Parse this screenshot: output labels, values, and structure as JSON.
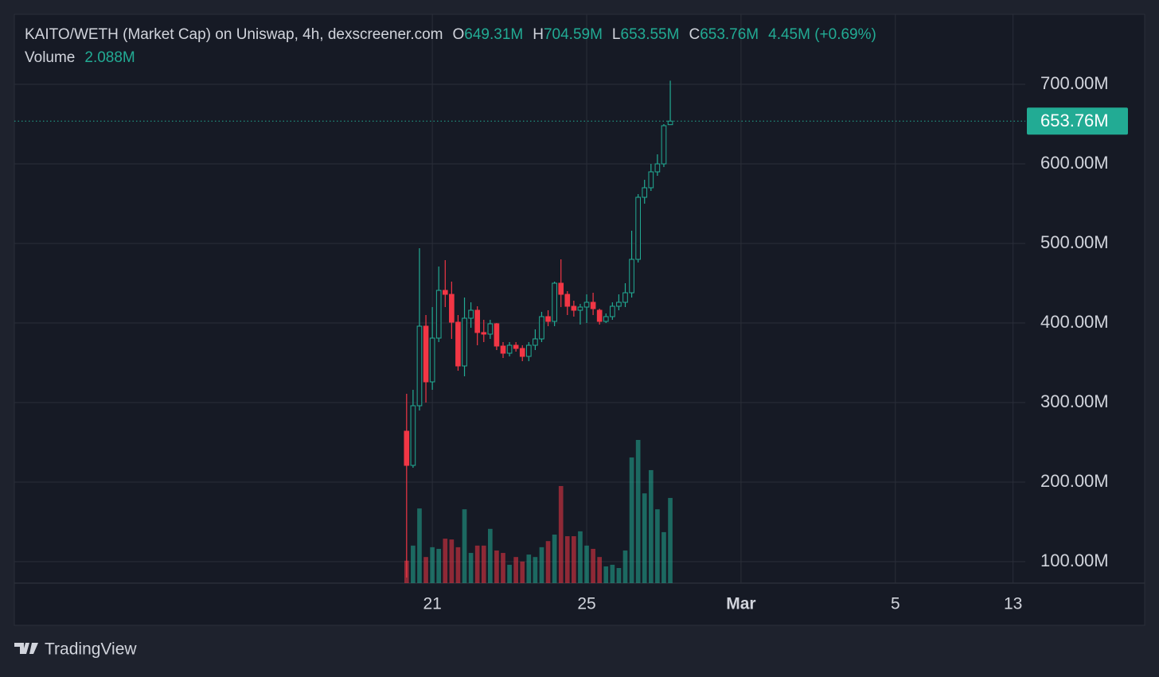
{
  "chart_data": {
    "type": "candlestick",
    "title": "KAITO/WETH (Market Cap) on Uniswap, 4h, dexscreener.com",
    "ohlc_legend": [
      {
        "label": "O",
        "value": "649.31M"
      },
      {
        "label": "H",
        "value": "704.59M"
      },
      {
        "label": "L",
        "value": "653.55M"
      },
      {
        "label": "C",
        "value": "653.76M"
      }
    ],
    "change": "4.45M (+0.69%)",
    "volume_label": "Volume",
    "volume_value": "2.088M",
    "last_price": {
      "value": 653.76,
      "label": "653.76M"
    },
    "up_color": "#22ab94",
    "down_color": "#f23645",
    "x": [
      0,
      1,
      2,
      3,
      4,
      5,
      6,
      7,
      8,
      9,
      10,
      11,
      12,
      13,
      14,
      15,
      16,
      17,
      18,
      19,
      20,
      21,
      22,
      23,
      24,
      25,
      26,
      27,
      28,
      29,
      30,
      31,
      32,
      33,
      34,
      35,
      36,
      37,
      38,
      39,
      40,
      41
    ],
    "open": [
      264,
      221,
      296,
      396,
      326,
      381,
      441,
      436,
      401,
      346,
      406,
      416,
      388,
      386,
      399,
      371,
      362,
      372,
      368,
      358,
      372,
      380,
      408,
      402,
      450,
      436,
      421,
      416,
      420,
      426,
      416,
      402,
      408,
      421,
      426,
      438,
      480,
      558,
      570,
      590,
      600,
      649.31
    ],
    "high": [
      311,
      316,
      494,
      410,
      420,
      471,
      479,
      452,
      410,
      432,
      426,
      421,
      404,
      404,
      400,
      376,
      376,
      376,
      372,
      376,
      392,
      414,
      416,
      452,
      480,
      440,
      428,
      424,
      436,
      438,
      418,
      412,
      426,
      436,
      450,
      516,
      562,
      580,
      600,
      612,
      650,
      704.59
    ],
    "low": [
      80,
      218,
      290,
      300,
      316,
      376,
      420,
      380,
      340,
      333,
      394,
      372,
      376,
      380,
      366,
      356,
      358,
      364,
      352,
      352,
      366,
      376,
      396,
      396,
      420,
      410,
      408,
      398,
      400,
      410,
      398,
      400,
      404,
      416,
      420,
      432,
      476,
      550,
      566,
      585,
      596,
      653.55
    ],
    "close": [
      221,
      296,
      396,
      326,
      381,
      441,
      436,
      401,
      346,
      406,
      416,
      388,
      386,
      399,
      371,
      362,
      372,
      368,
      358,
      372,
      380,
      408,
      402,
      450,
      436,
      421,
      416,
      420,
      426,
      418,
      402,
      408,
      421,
      426,
      438,
      480,
      558,
      570,
      590,
      600,
      648,
      653.76
    ],
    "volume": [
      0.55,
      0.92,
      1.83,
      0.64,
      0.88,
      0.84,
      1.09,
      1.07,
      0.88,
      1.81,
      0.74,
      0.92,
      0.92,
      1.33,
      0.8,
      0.74,
      0.45,
      0.64,
      0.53,
      0.7,
      0.64,
      0.88,
      1.03,
      1.19,
      2.38,
      1.15,
      1.15,
      1.27,
      0.92,
      0.84,
      0.64,
      0.41,
      0.45,
      0.37,
      0.8,
      3.08,
      3.51,
      2.2,
      2.77,
      1.81,
      1.25,
      2.088
    ],
    "ylim": [
      73,
      788
    ],
    "yticks": [
      {
        "value": 100,
        "label": "100.00M"
      },
      {
        "value": 200,
        "label": "200.00M"
      },
      {
        "value": 300,
        "label": "300.00M"
      },
      {
        "value": 400,
        "label": "400.00M"
      },
      {
        "value": 500,
        "label": "500.00M"
      },
      {
        "value": 600,
        "label": "600.00M"
      },
      {
        "value": 700,
        "label": "700.00M"
      }
    ],
    "xlim": [
      -61,
      96.2
    ],
    "xticks": [
      {
        "value": 4,
        "label": "21"
      },
      {
        "value": 28,
        "label": "25"
      },
      {
        "value": 52,
        "label": "Mar"
      },
      {
        "value": 76,
        "label": "5"
      },
      {
        "value": 94.3,
        "label": "13"
      }
    ],
    "grid": true,
    "brand": "TradingView"
  }
}
